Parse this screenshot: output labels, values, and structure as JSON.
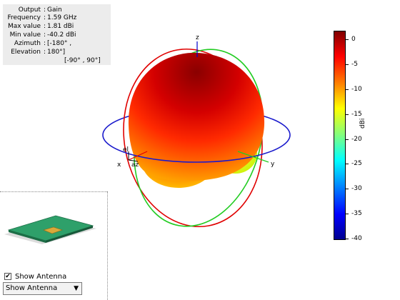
{
  "info": {
    "rows": [
      {
        "label": "Output",
        "value": "Gain"
      },
      {
        "label": "Frequency",
        "value": "1.59 GHz"
      },
      {
        "label": "Max value",
        "value": "1.81 dBi"
      },
      {
        "label": "Min value",
        "value": "-40.2 dBi"
      },
      {
        "label": "Azimuth",
        "value": "[-180° ,"
      },
      {
        "label": "Elevation",
        "value": "180°]"
      },
      {
        "label": "",
        "value": "[-90° , 90°]"
      }
    ]
  },
  "axes": {
    "z": "z",
    "x": "x",
    "y": "y",
    "el": "el",
    "az": "az"
  },
  "colorbar": {
    "ticks": [
      "0",
      "-5",
      "-10",
      "-15",
      "-20",
      "-25",
      "-30",
      "-35",
      "-40"
    ],
    "unit": "dBi"
  },
  "antenna_panel": {
    "checkbox_label": "Show Antenna",
    "checked": true,
    "dropdown_value": "Show Antenna"
  },
  "colors": {
    "elevation_ring_red": "#e00000",
    "elevation_ring_green": "#22cc22",
    "azimuth_ring_blue": "#1a1acc",
    "patch_substrate": "#2ea06a",
    "patch_element": "#d9a93a"
  }
}
